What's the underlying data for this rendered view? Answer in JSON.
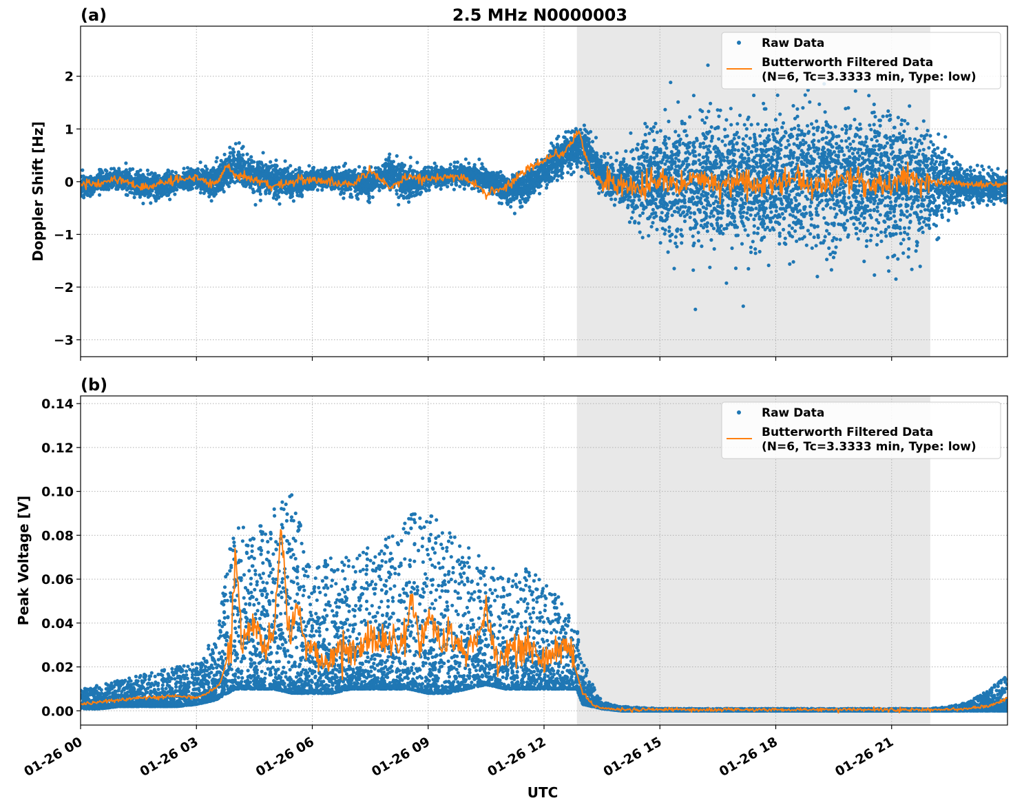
{
  "chart_data": [
    {
      "type": "scatter",
      "panel_label": "(a)",
      "title": "2.5 MHz N0000003",
      "xlabel": "",
      "ylabel": "Doppler Shift [Hz]",
      "xlim_hours": [
        0,
        24
      ],
      "ylim": [
        -3.32,
        2.95
      ],
      "yticks": [
        2,
        1,
        0,
        -1,
        -2,
        -3
      ],
      "ytick_labels": [
        "2",
        "1",
        "0",
        "−1",
        "−2",
        "−3"
      ],
      "grid": true,
      "shaded_region_hours": [
        12.85,
        22.0
      ],
      "legend": {
        "placement": "top-right",
        "entries": [
          {
            "label": "Raw Data",
            "marker": "dot",
            "color": "#1f77b4"
          },
          {
            "label": "Butterworth Filtered Data",
            "label2": "(N=6, Tc=3.3333 min, Type: low)",
            "marker": "line",
            "color": "#ff7f0e"
          }
        ]
      },
      "series": [
        {
          "name": "Raw Data",
          "color": "#1f77b4",
          "x_hours": [
            0,
            0.5,
            1,
            1.5,
            2,
            2.5,
            3,
            3.5,
            4,
            4.5,
            5,
            5.5,
            6,
            6.5,
            7,
            7.5,
            8,
            8.5,
            9,
            9.5,
            10,
            10.5,
            11,
            11.5,
            12,
            12.5,
            13,
            13.5,
            14,
            14.5,
            15,
            15.5,
            16,
            16.5,
            17,
            17.5,
            18,
            18.5,
            19,
            19.5,
            20,
            20.5,
            21,
            21.5,
            22,
            22.5,
            23,
            23.5,
            24
          ],
          "center": [
            -0.1,
            0,
            0.05,
            -0.05,
            -0.1,
            0,
            0.05,
            0,
            0.3,
            0.1,
            0.05,
            -0.05,
            0.05,
            0.05,
            0,
            -0.05,
            0.2,
            -0.05,
            0.1,
            0.1,
            0.15,
            0.05,
            -0.15,
            -0.1,
            0.2,
            0.5,
            0.7,
            0.1,
            0,
            0,
            0,
            0,
            0,
            0,
            0,
            0,
            0,
            0,
            0,
            0,
            0,
            0,
            0,
            0,
            0,
            -0.05,
            -0.1,
            -0.1,
            -0.1
          ],
          "spread": [
            0.25,
            0.2,
            0.2,
            0.25,
            0.25,
            0.2,
            0.2,
            0.3,
            0.4,
            0.35,
            0.3,
            0.3,
            0.2,
            0.2,
            0.25,
            0.25,
            0.3,
            0.3,
            0.2,
            0.2,
            0.2,
            0.2,
            0.3,
            0.3,
            0.3,
            0.35,
            0.4,
            0.35,
            0.4,
            0.9,
            1.1,
            1.2,
            1.3,
            1.3,
            1.3,
            1.3,
            1.3,
            1.3,
            1.3,
            1.3,
            1.3,
            1.3,
            1.3,
            1.2,
            1.0,
            0.5,
            0.35,
            0.3,
            0.3
          ]
        },
        {
          "name": "Butterworth Filtered Data",
          "color": "#ff7f0e",
          "x_hours": [
            0,
            0.5,
            1,
            1.5,
            2,
            2.5,
            3,
            3.5,
            3.8,
            4,
            4.5,
            5,
            5.5,
            6,
            6.5,
            7,
            7.5,
            8,
            8.5,
            9,
            9.5,
            10,
            10.5,
            11,
            11.5,
            12,
            12.5,
            12.9,
            13.2,
            13.5,
            14,
            14.5,
            15,
            15.5,
            16,
            16.5,
            17,
            17.5,
            18,
            18.5,
            19,
            19.5,
            20,
            20.5,
            21,
            21.5,
            22,
            22.5,
            23,
            23.5,
            24
          ],
          "values": [
            -0.05,
            -0.05,
            0.05,
            -0.1,
            -0.05,
            0.05,
            0.05,
            -0.05,
            0.35,
            0.1,
            0.05,
            -0.1,
            0,
            0.05,
            0,
            -0.05,
            0.2,
            -0.1,
            0.1,
            0.05,
            0.1,
            0.05,
            -0.2,
            -0.1,
            0.2,
            0.4,
            0.55,
            0.95,
            0.2,
            0,
            -0.05,
            -0.1,
            0,
            -0.05,
            0.05,
            -0.1,
            0.05,
            -0.05,
            0,
            0.05,
            -0.1,
            0,
            0.05,
            -0.05,
            0,
            0.05,
            0,
            0,
            -0.05,
            -0.05,
            -0.05
          ]
        }
      ]
    },
    {
      "type": "scatter",
      "panel_label": "(b)",
      "title": "",
      "xlabel": "UTC",
      "ylabel": "Peak Voltage [V]",
      "xlim_hours": [
        0,
        24
      ],
      "ylim": [
        -0.0065,
        0.1435
      ],
      "yticks": [
        0.14,
        0.12,
        0.1,
        0.08,
        0.06,
        0.04,
        0.02,
        0
      ],
      "ytick_labels": [
        "0.14",
        "0.12",
        "0.10",
        "0.08",
        "0.06",
        "0.04",
        "0.02",
        "0.00"
      ],
      "xticks_hours": [
        0,
        3,
        6,
        9,
        12,
        15,
        18,
        21
      ],
      "xtick_labels": [
        "01-26 00",
        "01-26 03",
        "01-26 06",
        "01-26 09",
        "01-26 12",
        "01-26 15",
        "01-26 18",
        "01-26 21"
      ],
      "grid": true,
      "shaded_region_hours": [
        12.85,
        22.0
      ],
      "legend": {
        "placement": "top-right",
        "entries": [
          {
            "label": "Raw Data",
            "marker": "dot",
            "color": "#1f77b4"
          },
          {
            "label": "Butterworth Filtered Data",
            "label2": "(N=6, Tc=3.3333 min, Type: low)",
            "marker": "line",
            "color": "#ff7f0e"
          }
        ]
      },
      "series": [
        {
          "name": "Raw Data",
          "color": "#1f77b4",
          "x_hours": [
            0,
            0.5,
            1,
            1.5,
            2,
            2.5,
            3,
            3.5,
            4,
            4.5,
            5,
            5.5,
            6,
            6.5,
            7,
            7.5,
            8,
            8.5,
            9,
            9.5,
            10,
            10.5,
            11,
            11.5,
            12,
            12.5,
            12.85,
            13,
            13.5,
            14,
            15,
            16,
            17,
            18,
            19,
            20,
            21,
            22,
            22.5,
            23,
            23.5,
            24
          ],
          "low": [
            0.001,
            0.001,
            0.002,
            0.002,
            0.002,
            0.002,
            0.003,
            0.005,
            0.01,
            0.01,
            0.01,
            0.008,
            0.008,
            0.008,
            0.01,
            0.01,
            0.01,
            0.01,
            0.008,
            0.008,
            0.01,
            0.012,
            0.01,
            0.01,
            0.01,
            0.01,
            0.01,
            0.003,
            0.001,
            0,
            0,
            0,
            0,
            0,
            0,
            0,
            0,
            0,
            0,
            0,
            0,
            0
          ],
          "high": [
            0.01,
            0.012,
            0.014,
            0.016,
            0.018,
            0.02,
            0.022,
            0.035,
            0.09,
            0.08,
            0.095,
            0.1,
            0.065,
            0.07,
            0.07,
            0.075,
            0.08,
            0.09,
            0.09,
            0.085,
            0.075,
            0.07,
            0.06,
            0.065,
            0.06,
            0.05,
            0.04,
            0.025,
            0.004,
            0.002,
            0.001,
            0.001,
            0.001,
            0.001,
            0.001,
            0.001,
            0.001,
            0.001,
            0.002,
            0.004,
            0.01,
            0.016
          ]
        },
        {
          "name": "Butterworth Filtered Data",
          "color": "#ff7f0e",
          "x_hours": [
            0,
            0.5,
            1,
            1.5,
            2,
            2.5,
            3,
            3.3,
            3.6,
            3.9,
            4.0,
            4.2,
            4.5,
            4.8,
            5.0,
            5.2,
            5.4,
            5.6,
            5.8,
            6,
            6.3,
            6.6,
            6.9,
            7.2,
            7.5,
            7.8,
            8,
            8.3,
            8.6,
            8.8,
            9,
            9.3,
            9.6,
            9.9,
            10.2,
            10.5,
            10.8,
            11.1,
            11.4,
            11.7,
            12,
            12.3,
            12.6,
            12.8,
            13,
            13.3,
            13.6,
            14,
            15,
            16,
            17,
            18,
            19,
            20,
            21,
            22,
            22.5,
            23,
            23.5,
            23.8,
            24
          ],
          "values": [
            0.003,
            0.004,
            0.005,
            0.006,
            0.006,
            0.007,
            0.006,
            0.008,
            0.012,
            0.03,
            0.072,
            0.03,
            0.04,
            0.025,
            0.035,
            0.085,
            0.03,
            0.045,
            0.03,
            0.03,
            0.02,
            0.025,
            0.03,
            0.025,
            0.035,
            0.03,
            0.035,
            0.028,
            0.05,
            0.03,
            0.045,
            0.03,
            0.035,
            0.025,
            0.03,
            0.045,
            0.02,
            0.03,
            0.025,
            0.03,
            0.022,
            0.025,
            0.03,
            0.02,
            0.008,
            0.002,
            0.001,
            0.0005,
            0.0005,
            0.0005,
            0.0005,
            0.0005,
            0.0005,
            0.0005,
            0.0005,
            0.0005,
            0.0005,
            0.001,
            0.002,
            0.004,
            0.006
          ]
        }
      ]
    }
  ]
}
